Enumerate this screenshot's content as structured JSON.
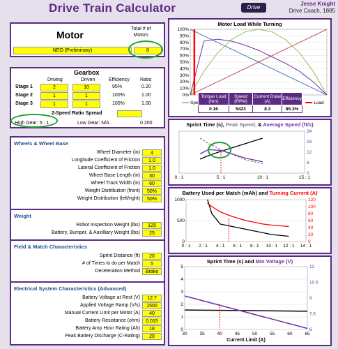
{
  "header": {
    "title": "Drive Train Calculator",
    "brand": "Drive",
    "author": "Jesse Knight",
    "role": "Drive Coach, 1885"
  },
  "motor": {
    "label": "Motor",
    "total_label": "Total # of",
    "motors_label": "Motors",
    "name": "NEO (Preliminary)",
    "count": "8"
  },
  "gearbox": {
    "title": "Gearbox",
    "headers": [
      "Driving",
      "Driven",
      "Efficiency",
      "Ratio"
    ],
    "stages": [
      {
        "label": "Stage 1",
        "driving": "2",
        "driven": "10",
        "eff": "95%",
        "ratio": "0.20"
      },
      {
        "label": "Stage 2",
        "driving": "1",
        "driven": "1",
        "eff": "100%",
        "ratio": "1.00"
      },
      {
        "label": "Stage 3",
        "driving": "1",
        "driven": "1",
        "eff": "100%",
        "ratio": "1.00"
      }
    ],
    "spread_label": "2-Speed Ratio Spread",
    "high_label": "High Gear: 5 : 1",
    "low_label": "Low Gear: N/A",
    "overall": "0.200"
  },
  "wheels": {
    "title": "Wheels & Wheel Base",
    "rows": [
      {
        "label": "Wheel Diameter (in)",
        "value": "4"
      },
      {
        "label": "Longitude Coefficient of Friction",
        "value": "1.0"
      },
      {
        "label": "Lateral Coefficient of Friction",
        "value": "1.0"
      },
      {
        "label": "Wheel Base Length (in)",
        "value": "30"
      },
      {
        "label": "Wheel Track Width (in)",
        "value": "60"
      },
      {
        "label": "Weight Distribution (front)",
        "value": "50%"
      },
      {
        "label": "Weight Distribution (left/right)",
        "value": "50%"
      }
    ]
  },
  "weight": {
    "title": "Weight",
    "rows": [
      {
        "label": "Robot Inspection Weight (lbs)",
        "value": "125"
      },
      {
        "label": "Battery, Bumper, & Auxilliary Weight (lbs)",
        "value": "25"
      }
    ]
  },
  "field": {
    "title": "Field & Match Characteristics",
    "rows": [
      {
        "label": "Sprint Distance (ft)",
        "value": "20"
      },
      {
        "label": "# of Times to do per Match",
        "value": "5"
      },
      {
        "label": "Deceleration Method",
        "value": "Brake"
      }
    ]
  },
  "electrical": {
    "title": "Electrical System Characteristics (Advanced)",
    "rows": [
      {
        "label": "Battery Voltage at Rest (V)",
        "value": "12.7"
      },
      {
        "label": "Applied Voltage Ramp (V/s)",
        "value": "1500"
      },
      {
        "label": "Manual Current Limit per Motor (A)",
        "value": "40"
      },
      {
        "label": "Battery Resistance (ohm)",
        "value": "0.015"
      },
      {
        "label": "Battery Amp Hour Rating (Ah)",
        "value": "18"
      },
      {
        "label": "Peak Battery Discharge (C-Rating)",
        "value": "20"
      }
    ]
  },
  "stats": {
    "headers": [
      "Torque Load (Nm)",
      "Speed (RPM)",
      "Current Draw (A)",
      "Efficiency"
    ],
    "values": [
      "0.16",
      "5423",
      "8.3",
      "85.3%"
    ]
  },
  "chart_data": [
    {
      "type": "line",
      "title": "Motor Load While Turning",
      "ylim": [
        0,
        100
      ],
      "y_ticks": [
        "100%",
        "90%",
        "80%",
        "70%",
        "60%",
        "50%",
        "40%",
        "30%",
        "20%",
        "10%",
        "0%"
      ],
      "legend": [
        "Speed",
        "Current",
        "Power",
        "Efficiency",
        "Load"
      ],
      "colors": {
        "Speed": "#4472c4",
        "Current": "#c0504d",
        "Power": "#9bbb59",
        "Efficiency": "#7030a0",
        "Load": "#ff0000"
      },
      "x": [
        0,
        0.1,
        0.2,
        0.3,
        0.4,
        0.5,
        0.6,
        0.7,
        0.8,
        0.9,
        1
      ],
      "series": [
        {
          "name": "Speed",
          "values": [
            100,
            90,
            80,
            70,
            60,
            50,
            40,
            30,
            20,
            10,
            0
          ]
        },
        {
          "name": "Current",
          "values": [
            0,
            10,
            20,
            30,
            40,
            50,
            60,
            70,
            80,
            90,
            100
          ]
        },
        {
          "name": "Power",
          "values": [
            0,
            36,
            64,
            84,
            96,
            100,
            96,
            84,
            64,
            36,
            0
          ]
        },
        {
          "name": "Efficiency",
          "values": [
            0,
            82,
            85,
            82,
            76,
            68,
            58,
            48,
            36,
            20,
            0
          ]
        }
      ],
      "load_x": 0.03
    },
    {
      "type": "line",
      "title": "Sprint Time (s), Peak Speed, & Average Speed (ft/s)",
      "title_parts": [
        "Sprint Time (s),",
        "Peak Speed,",
        "&",
        "Average Speed (ft/s)"
      ],
      "x_ticks": [
        "0 : 1",
        "5 : 1",
        "10 : 1",
        "15 : 1"
      ],
      "y2_ticks": [
        "24",
        "18",
        "12",
        "6",
        "0"
      ],
      "y2lim": [
        0,
        24
      ],
      "series": [
        {
          "name": "Sprint Time",
          "color": "#000000",
          "x": [
            2.5,
            3.5,
            5,
            6,
            7,
            8,
            9,
            10
          ],
          "values": [
            8,
            10,
            12.5,
            14,
            15.5,
            17,
            18.5,
            20
          ]
        },
        {
          "name": "Peak Speed",
          "color": "#808080",
          "x": [
            2.5,
            3.5,
            5,
            6,
            7,
            8,
            9,
            10
          ],
          "values": [
            20,
            17,
            13.5,
            11.5,
            9.5,
            7.5,
            6.5,
            5.5
          ]
        },
        {
          "name": "Average Speed",
          "color": "#7030a0",
          "x": [
            2.5,
            3.5,
            5,
            6,
            7,
            8,
            9,
            10
          ],
          "values": [
            11,
            13.5,
            13,
            11.5,
            10,
            8.5,
            7.5,
            6.5
          ]
        }
      ],
      "marker_x": 5
    },
    {
      "type": "line",
      "title": "Battery Used per Match (mAh) and Turning Current (A)",
      "title_parts": [
        "Battery Used per Match (mAh) and",
        "Turning Current (A)"
      ],
      "x_ticks": [
        "0 : 1",
        "2 : 1",
        "4 : 1",
        "6 : 1",
        "8 : 1",
        "10 : 1",
        "12 : 1",
        "14 : 1"
      ],
      "y_ticks": [
        "1000",
        "500",
        "0"
      ],
      "y2_ticks": [
        "120",
        "100",
        "80",
        "60",
        "40",
        "20",
        "0"
      ],
      "ylim": [
        0,
        1000
      ],
      "y2lim": [
        0,
        120
      ],
      "series": [
        {
          "name": "Battery Used",
          "color": "#000000",
          "x": [
            2.5,
            3,
            4,
            6,
            8,
            10,
            12
          ],
          "values": [
            120,
            80,
            50,
            40,
            30,
            20,
            15
          ]
        },
        {
          "name": "Turning Current",
          "color": "#ff0000",
          "x": [
            2.5,
            3,
            4,
            5,
            6,
            7,
            8,
            9,
            10,
            11,
            12
          ],
          "values": [
            110,
            100,
            85,
            75,
            67,
            60,
            55,
            50,
            47,
            45,
            43
          ]
        }
      ],
      "marker_x": 5
    },
    {
      "type": "line",
      "title": "Sprint Time (s) and Min Voltage (V)",
      "title_parts": [
        "Sprint Time (s) and",
        "Min Voltage (V)"
      ],
      "x_ticks": [
        "30",
        "35",
        "40",
        "45",
        "50",
        "55",
        "60",
        "65"
      ],
      "xlabel": "Current Limit (A)",
      "y_ticks": [
        "5",
        "4",
        "3",
        "2",
        "1",
        "0"
      ],
      "y2_ticks": [
        "12",
        "10.5",
        "9",
        "7.5",
        "6"
      ],
      "ylim": [
        0,
        5
      ],
      "y2lim": [
        6,
        12
      ],
      "series": [
        {
          "name": "Sprint Time",
          "color": "#000000",
          "x": [
            30,
            65
          ],
          "values": [
            1.55,
            1.45
          ]
        },
        {
          "name": "Min Voltage",
          "color": "#7030a0",
          "x": [
            30,
            65
          ],
          "values": [
            9.2,
            6.1
          ]
        }
      ],
      "marker_x": 40
    }
  ]
}
